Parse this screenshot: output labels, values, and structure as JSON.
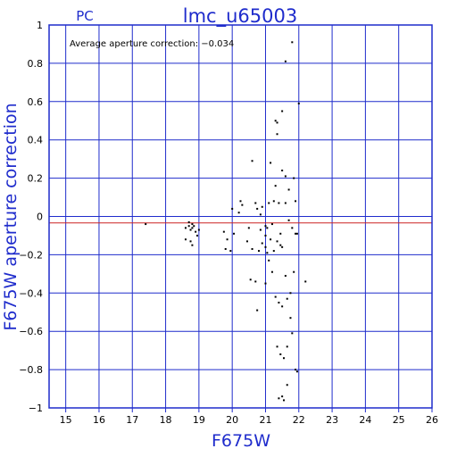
{
  "header": {
    "detector": "PC",
    "title": "lmc_u65003"
  },
  "colors": {
    "frame": "#1f2ccc",
    "grid": "#1f2ccc",
    "average_line": "#cc2222",
    "points": "#000000",
    "text": "#1f2ccc"
  },
  "chart_data": {
    "type": "scatter",
    "title": "lmc_u65003",
    "subtitle": "PC",
    "xlabel": "F675W",
    "ylabel": "F675W aperture correction",
    "xlim": [
      14.5,
      26
    ],
    "ylim": [
      -1,
      1
    ],
    "xticks": [
      15,
      16,
      17,
      18,
      19,
      20,
      21,
      22,
      23,
      24,
      25,
      26
    ],
    "yticks": [
      -1,
      -0.8,
      -0.6,
      -0.4,
      -0.2,
      0,
      0.2,
      0.4,
      0.6,
      0.8,
      1
    ],
    "xtick_labels": [
      "15",
      "16",
      "17",
      "18",
      "19",
      "20",
      "21",
      "22",
      "23",
      "24",
      "25",
      "26"
    ],
    "ytick_labels": [
      "−1",
      "−0.8",
      "−0.6",
      "−0.4",
      "−0.2",
      "0",
      "0.2",
      "0.4",
      "0.6",
      "0.8",
      "1"
    ],
    "grid": true,
    "reference_lines": [
      {
        "y": 0,
        "label": "zero"
      },
      {
        "y": -0.034,
        "label": "average"
      }
    ],
    "annotation": "Average aperture correction: −0.034",
    "points": [
      [
        17.4,
        -0.04
      ],
      [
        18.6,
        -0.06
      ],
      [
        18.7,
        -0.03
      ],
      [
        18.7,
        -0.05
      ],
      [
        18.75,
        -0.07
      ],
      [
        18.8,
        -0.04
      ],
      [
        18.8,
        -0.06
      ],
      [
        18.85,
        -0.05
      ],
      [
        18.9,
        -0.08
      ],
      [
        18.75,
        -0.13
      ],
      [
        18.6,
        -0.12
      ],
      [
        18.8,
        -0.15
      ],
      [
        18.95,
        -0.1
      ],
      [
        19.0,
        -0.07
      ],
      [
        19.75,
        -0.08
      ],
      [
        19.85,
        -0.12
      ],
      [
        19.8,
        -0.17
      ],
      [
        19.95,
        -0.18
      ],
      [
        20.0,
        0.04
      ],
      [
        20.05,
        -0.09
      ],
      [
        20.25,
        0.08
      ],
      [
        20.3,
        0.06
      ],
      [
        20.2,
        0.02
      ],
      [
        20.45,
        -0.13
      ],
      [
        20.5,
        -0.06
      ],
      [
        20.55,
        -0.33
      ],
      [
        20.6,
        -0.17
      ],
      [
        20.6,
        0.29
      ],
      [
        20.7,
        0.07
      ],
      [
        20.7,
        -0.34
      ],
      [
        20.75,
        0.04
      ],
      [
        20.75,
        -0.49
      ],
      [
        20.8,
        -0.18
      ],
      [
        20.85,
        0.01
      ],
      [
        20.85,
        -0.07
      ],
      [
        20.9,
        0.05
      ],
      [
        20.9,
        -0.14
      ],
      [
        21.0,
        -0.05
      ],
      [
        21.0,
        -0.1
      ],
      [
        21.0,
        -0.16
      ],
      [
        21.0,
        -0.35
      ],
      [
        21.05,
        -0.19
      ],
      [
        21.05,
        -0.06
      ],
      [
        21.1,
        0.07
      ],
      [
        21.1,
        -0.23
      ],
      [
        21.15,
        0.28
      ],
      [
        21.15,
        -0.12
      ],
      [
        21.2,
        -0.04
      ],
      [
        21.2,
        -0.29
      ],
      [
        21.25,
        0.08
      ],
      [
        21.25,
        -0.18
      ],
      [
        21.3,
        0.16
      ],
      [
        21.3,
        0.5
      ],
      [
        21.3,
        -0.42
      ],
      [
        21.35,
        0.49
      ],
      [
        21.35,
        0.43
      ],
      [
        21.35,
        -0.13
      ],
      [
        21.35,
        -0.68
      ],
      [
        21.4,
        0.07
      ],
      [
        21.4,
        -0.45
      ],
      [
        21.4,
        -0.95
      ],
      [
        21.45,
        -0.09
      ],
      [
        21.45,
        -0.15
      ],
      [
        21.45,
        -0.72
      ],
      [
        21.5,
        0.55
      ],
      [
        21.5,
        0.24
      ],
      [
        21.5,
        -0.16
      ],
      [
        21.5,
        -0.47
      ],
      [
        21.5,
        -0.94
      ],
      [
        21.55,
        -0.74
      ],
      [
        21.55,
        -0.96
      ],
      [
        21.6,
        0.81
      ],
      [
        21.6,
        0.21
      ],
      [
        21.6,
        0.07
      ],
      [
        21.6,
        -0.31
      ],
      [
        21.65,
        -0.43
      ],
      [
        21.65,
        -0.68
      ],
      [
        21.65,
        -0.88
      ],
      [
        21.7,
        0.14
      ],
      [
        21.7,
        -0.02
      ],
      [
        21.75,
        -0.4
      ],
      [
        21.75,
        -0.53
      ],
      [
        21.8,
        0.91
      ],
      [
        21.8,
        -0.06
      ],
      [
        21.8,
        -0.61
      ],
      [
        21.85,
        0.2
      ],
      [
        21.85,
        -0.29
      ],
      [
        21.9,
        0.08
      ],
      [
        21.9,
        -0.09
      ],
      [
        21.9,
        -0.8
      ],
      [
        21.95,
        -0.09
      ],
      [
        21.95,
        -0.81
      ],
      [
        22.0,
        0.59
      ],
      [
        22.2,
        -0.34
      ]
    ]
  }
}
